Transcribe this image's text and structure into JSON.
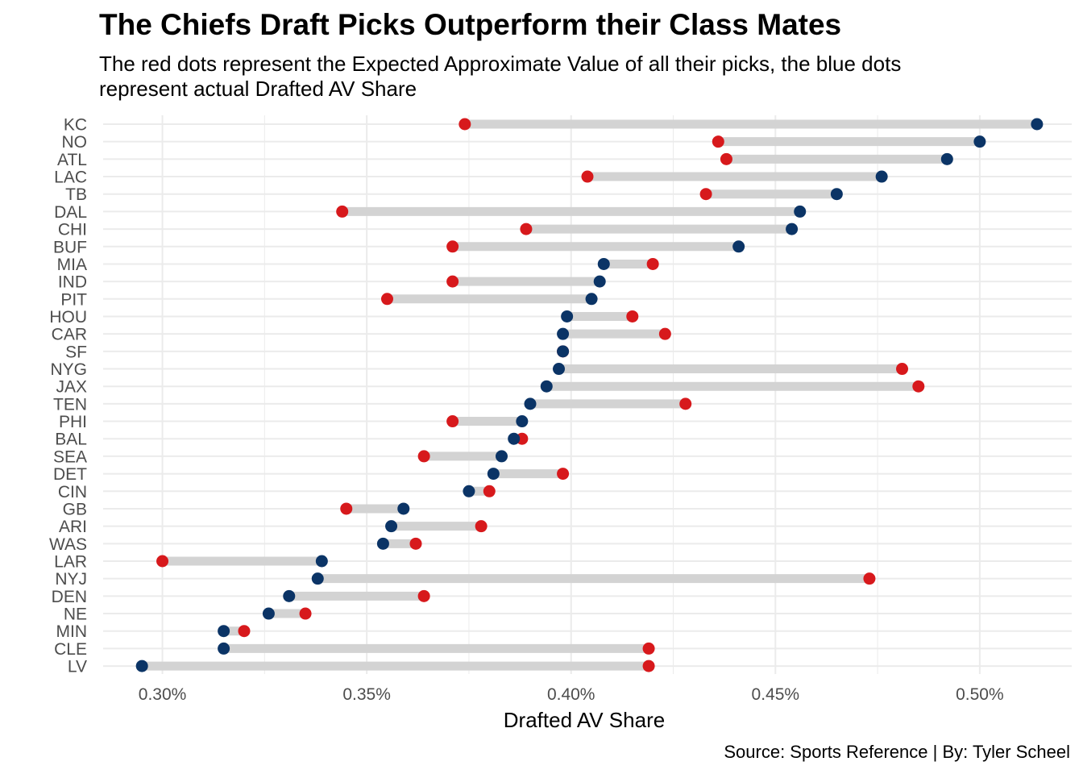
{
  "chart_data": {
    "type": "dumbbell",
    "title": "The Chiefs Draft Picks Outperform their Class Mates",
    "subtitle": "The red dots represent the Expected Approximate Value of all their picks, the blue dots\n represent actual Drafted AV Share",
    "xlabel": "Drafted AV Share",
    "ylabel": "",
    "caption": "Source: Sports Reference | By: Tyler Scheel",
    "xlim": [
      0.2855,
      0.5225
    ],
    "x_ticks": [
      0.3,
      0.35,
      0.4,
      0.45,
      0.5
    ],
    "x_tick_labels": [
      "0.30%",
      "0.35%",
      "0.40%",
      "0.45%",
      "0.50%"
    ],
    "grid": true,
    "colors": {
      "expected": "#d7191c",
      "actual": "#0b3466",
      "segment": "#d3d3d3",
      "grid": "#ebebeb"
    },
    "teams": [
      {
        "team": "KC",
        "actual": 0.514,
        "expected": 0.374
      },
      {
        "team": "NO",
        "actual": 0.5,
        "expected": 0.436
      },
      {
        "team": "ATL",
        "actual": 0.492,
        "expected": 0.438
      },
      {
        "team": "LAC",
        "actual": 0.476,
        "expected": 0.404
      },
      {
        "team": "TB",
        "actual": 0.465,
        "expected": 0.433
      },
      {
        "team": "DAL",
        "actual": 0.456,
        "expected": 0.344
      },
      {
        "team": "CHI",
        "actual": 0.454,
        "expected": 0.389
      },
      {
        "team": "BUF",
        "actual": 0.441,
        "expected": 0.371
      },
      {
        "team": "MIA",
        "actual": 0.408,
        "expected": 0.42
      },
      {
        "team": "IND",
        "actual": 0.407,
        "expected": 0.371
      },
      {
        "team": "PIT",
        "actual": 0.405,
        "expected": 0.355
      },
      {
        "team": "HOU",
        "actual": 0.399,
        "expected": 0.415
      },
      {
        "team": "CAR",
        "actual": 0.398,
        "expected": 0.423
      },
      {
        "team": "SF",
        "actual": 0.398,
        "expected": 0.398
      },
      {
        "team": "NYG",
        "actual": 0.397,
        "expected": 0.481
      },
      {
        "team": "JAX",
        "actual": 0.394,
        "expected": 0.485
      },
      {
        "team": "TEN",
        "actual": 0.39,
        "expected": 0.428
      },
      {
        "team": "PHI",
        "actual": 0.388,
        "expected": 0.371
      },
      {
        "team": "BAL",
        "actual": 0.386,
        "expected": 0.388
      },
      {
        "team": "SEA",
        "actual": 0.383,
        "expected": 0.364
      },
      {
        "team": "DET",
        "actual": 0.381,
        "expected": 0.398
      },
      {
        "team": "CIN",
        "actual": 0.375,
        "expected": 0.38
      },
      {
        "team": "GB",
        "actual": 0.359,
        "expected": 0.345
      },
      {
        "team": "ARI",
        "actual": 0.356,
        "expected": 0.378
      },
      {
        "team": "WAS",
        "actual": 0.354,
        "expected": 0.362
      },
      {
        "team": "LAR",
        "actual": 0.339,
        "expected": 0.3
      },
      {
        "team": "NYJ",
        "actual": 0.338,
        "expected": 0.473
      },
      {
        "team": "DEN",
        "actual": 0.331,
        "expected": 0.364
      },
      {
        "team": "NE",
        "actual": 0.326,
        "expected": 0.335
      },
      {
        "team": "MIN",
        "actual": 0.315,
        "expected": 0.32
      },
      {
        "team": "CLE",
        "actual": 0.315,
        "expected": 0.419
      },
      {
        "team": "LV",
        "actual": 0.295,
        "expected": 0.419
      }
    ]
  }
}
